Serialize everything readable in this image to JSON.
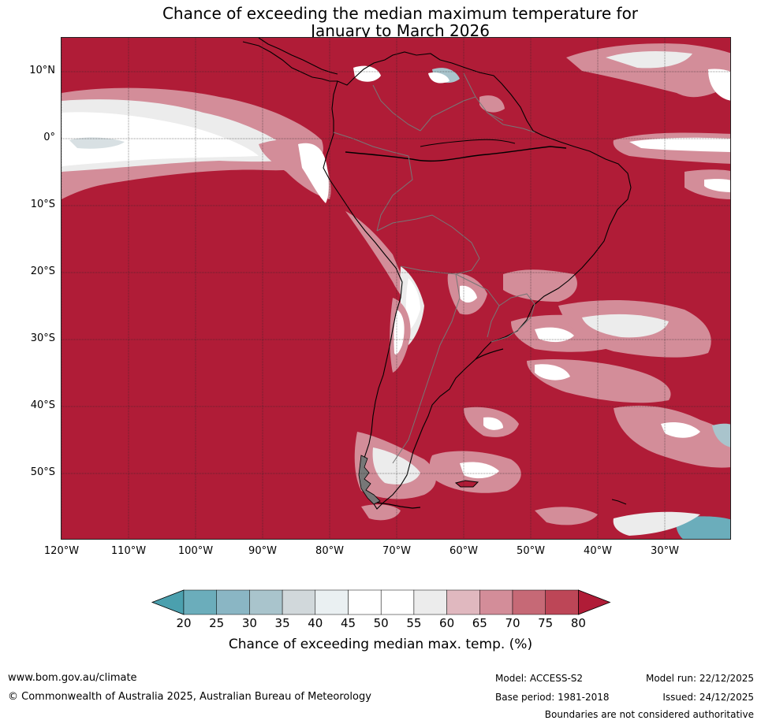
{
  "title": {
    "line1": "Chance of exceeding the median maximum temperature for",
    "line2": "January to March 2026"
  },
  "map": {
    "lat_labels": [
      "10°N",
      "0°",
      "10°S",
      "20°S",
      "30°S",
      "40°S",
      "50°S"
    ],
    "lon_labels": [
      "120°W",
      "110°W",
      "100°W",
      "90°W",
      "80°W",
      "70°W",
      "60°W",
      "50°W",
      "40°W",
      "30°W"
    ],
    "background_category": "80+",
    "colors": {
      "background": "#b01c37",
      "coastline": "#000000",
      "borders": "#777777",
      "gridlines": "#222222"
    }
  },
  "legend": {
    "ticks": [
      "20",
      "25",
      "30",
      "35",
      "40",
      "45",
      "50",
      "55",
      "60",
      "65",
      "70",
      "75",
      "80"
    ],
    "colors": [
      "#4ba0ae",
      "#6badbb",
      "#8ab6c4",
      "#a9c4cc",
      "#d1d8db",
      "#eaf0f2",
      "#ffffff",
      "#ffffff",
      "#ececec",
      "#e0b8bf",
      "#d38d99",
      "#c66976",
      "#bd4657",
      "#b01c37"
    ],
    "title": "Chance of exceeding median max. temp. (%)"
  },
  "footer": {
    "website": "www.bom.gov.au/climate",
    "copyright": "© Commonwealth of Australia 2025, Australian Bureau of Meteorology",
    "model": "Model: ACCESS-S2",
    "base_period": "Base period: 1981-2018",
    "model_run": "Model run: 22/12/2025",
    "issued": "Issued: 24/12/2025",
    "disclaimer": "Boundaries are not considered authoritative"
  }
}
